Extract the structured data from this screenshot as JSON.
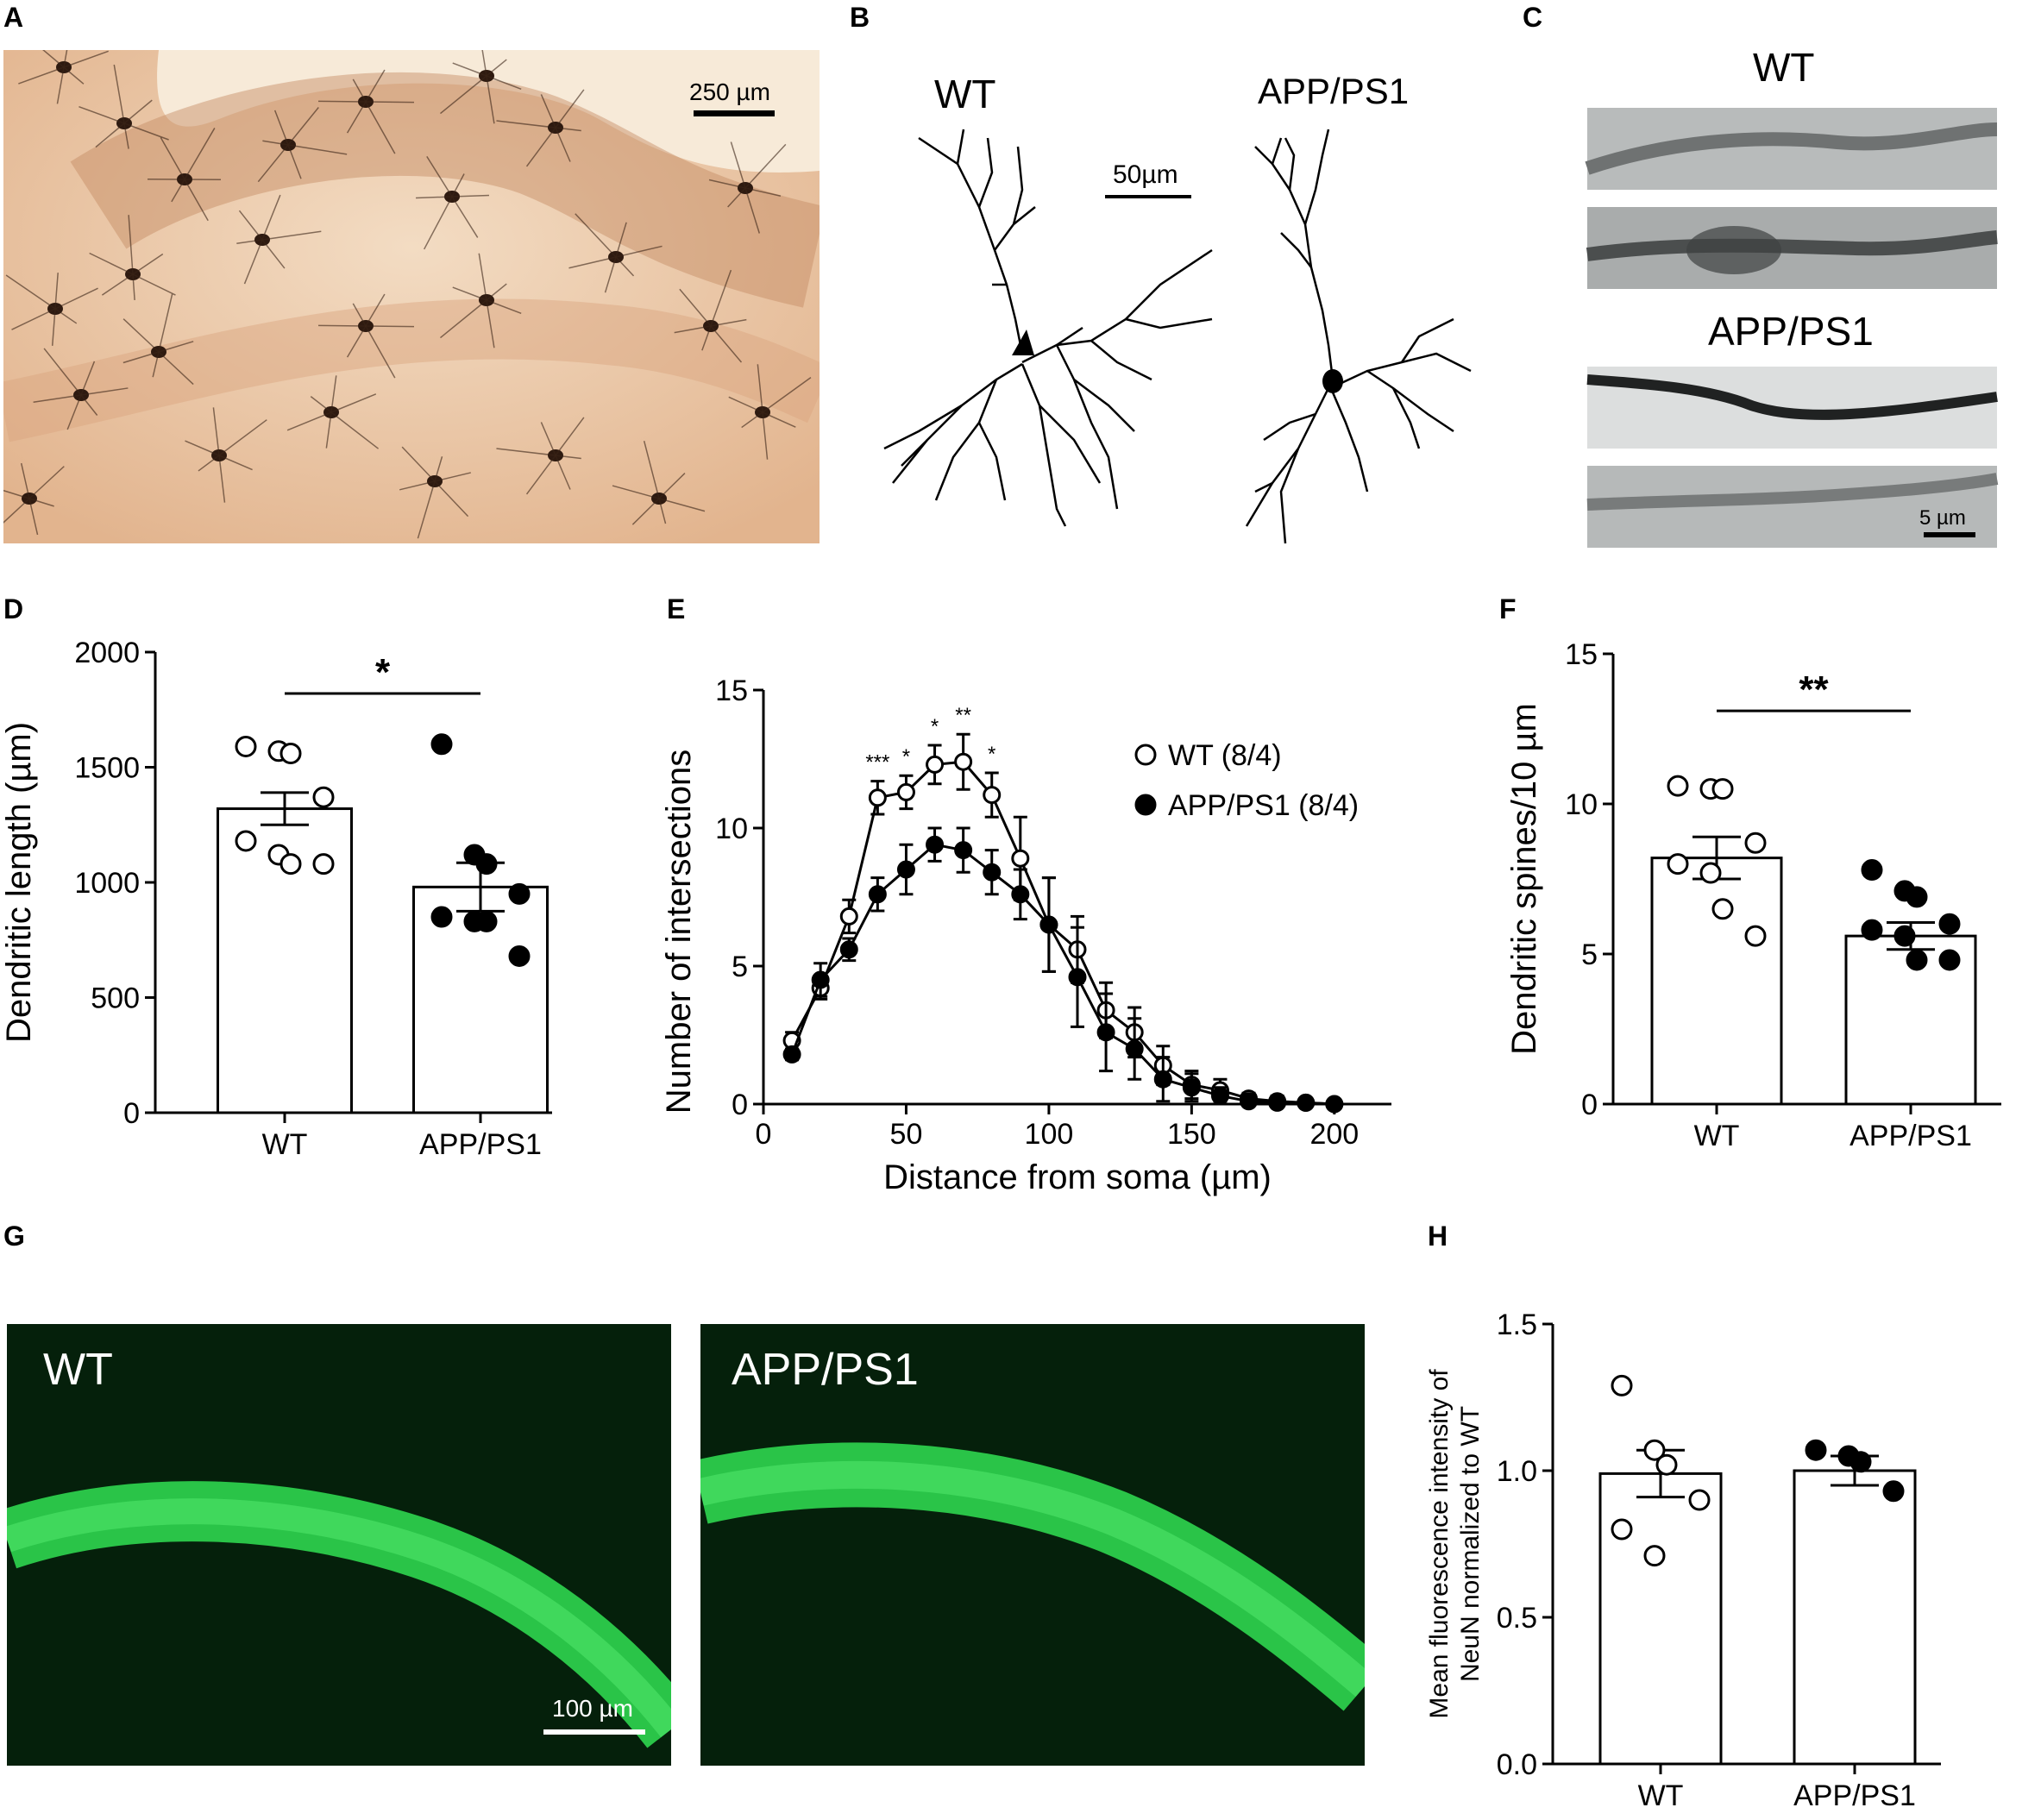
{
  "panels": {
    "A": {
      "label": "A",
      "scale": "250 µm"
    },
    "B": {
      "label": "B",
      "wt": "WT",
      "app": "APP/PS1",
      "scale": "50µm"
    },
    "C": {
      "label": "C",
      "wt": "WT",
      "app": "APP/PS1",
      "scale": "5 µm"
    },
    "D": {
      "label": "D"
    },
    "E": {
      "label": "E"
    },
    "F": {
      "label": "F"
    },
    "G": {
      "label": "G",
      "wt": "WT",
      "app": "APP/PS1",
      "scale": "100 µm"
    },
    "H": {
      "label": "H"
    }
  },
  "colors": {
    "photo_A_bg": "#eecfb2",
    "photo_A_fg": "#3a2417",
    "photo_C_bg": "#b9bcbc",
    "photo_G_bg": "#06210c",
    "photo_G_band": "#2fd64f"
  },
  "chart_data": [
    {
      "id": "D",
      "type": "bar",
      "categories": [
        "WT",
        "APP/PS1"
      ],
      "values": [
        1320,
        980
      ],
      "sem": [
        70,
        105
      ],
      "points": [
        [
          1590,
          1570,
          1560,
          1370,
          1180,
          1120,
          1080,
          1080
        ],
        [
          1600,
          1120,
          1080,
          950,
          850,
          830,
          830,
          680
        ]
      ],
      "point_fill": [
        "open",
        "filled"
      ],
      "ylabel": "Dendritic length (µm)",
      "ylim": [
        0,
        2000
      ],
      "yticks": [
        "0",
        "500",
        "1000",
        "1500",
        "2000"
      ],
      "significance": "*"
    },
    {
      "id": "E",
      "type": "line",
      "x": [
        10,
        20,
        30,
        40,
        50,
        60,
        70,
        80,
        90,
        100,
        110,
        120,
        130,
        140,
        150,
        160,
        170,
        180,
        190,
        200
      ],
      "series": [
        {
          "name": "WT (8/4)",
          "marker": "open",
          "values": [
            2.3,
            4.2,
            6.8,
            11.1,
            11.3,
            12.3,
            12.4,
            11.2,
            8.9,
            6.5,
            5.6,
            3.4,
            2.6,
            1.4,
            0.7,
            0.5,
            0.2,
            0.1,
            0.05,
            0.0
          ],
          "error": [
            0.3,
            0.4,
            0.6,
            0.6,
            0.6,
            0.7,
            1.0,
            0.8,
            1.5,
            1.7,
            1.2,
            1.0,
            0.9,
            0.7,
            0.5,
            0.4,
            0.2,
            0.2,
            0.15,
            0.1
          ]
        },
        {
          "name": "APP/PS1 (8/4)",
          "marker": "filled",
          "values": [
            1.8,
            4.5,
            5.6,
            7.6,
            8.5,
            9.4,
            9.2,
            8.4,
            7.6,
            6.5,
            4.6,
            2.6,
            2.0,
            0.9,
            0.6,
            0.3,
            0.1,
            0.05,
            0.05,
            0.0
          ],
          "error": [
            0.2,
            0.6,
            0.4,
            0.6,
            0.9,
            0.6,
            0.8,
            0.8,
            0.9,
            1.7,
            1.8,
            1.4,
            1.1,
            0.8,
            0.5,
            0.3,
            0.15,
            0.1,
            0.1,
            0.05
          ]
        }
      ],
      "annotations": [
        {
          "x": 40,
          "text": "***"
        },
        {
          "x": 50,
          "text": "*"
        },
        {
          "x": 60,
          "text": "*"
        },
        {
          "x": 70,
          "text": "**"
        },
        {
          "x": 80,
          "text": "*"
        }
      ],
      "xlabel": "Distance from soma (µm)",
      "ylabel": "Number of intersections",
      "xlim": [
        0,
        220
      ],
      "ylim": [
        0,
        15
      ],
      "xticks": [
        "0",
        "50",
        "100",
        "150",
        "200"
      ],
      "yticks": [
        "0",
        "5",
        "10",
        "15"
      ],
      "legend": "top-right"
    },
    {
      "id": "F",
      "type": "bar",
      "categories": [
        "WT",
        "APP/PS1"
      ],
      "values": [
        8.2,
        5.6
      ],
      "sem": [
        0.7,
        0.45
      ],
      "points": [
        [
          10.6,
          10.5,
          10.5,
          8.7,
          8.0,
          7.7,
          6.5,
          5.6
        ],
        [
          7.8,
          7.1,
          6.9,
          6.0,
          5.8,
          5.6,
          4.8,
          4.8
        ]
      ],
      "point_fill": [
        "open",
        "filled"
      ],
      "ylabel": "Dendritic spines/10 µm",
      "ylim": [
        0,
        15
      ],
      "yticks": [
        "0",
        "5",
        "10",
        "15"
      ],
      "significance": "**"
    },
    {
      "id": "H",
      "type": "bar",
      "categories": [
        "WT",
        "APP/PS1"
      ],
      "values": [
        0.99,
        1.0
      ],
      "sem": [
        0.08,
        0.05
      ],
      "points": [
        [
          1.29,
          1.07,
          1.02,
          0.9,
          0.8,
          0.71
        ],
        [
          1.07,
          1.05,
          1.03,
          0.93
        ]
      ],
      "point_fill": [
        "open",
        "filled"
      ],
      "ylabel_lines": [
        "Mean fluorescence intensity of",
        "NeuN normalized to WT"
      ],
      "ylim": [
        0,
        1.5
      ],
      "yticks": [
        "0.0",
        "0.5",
        "1.0",
        "1.5"
      ]
    }
  ]
}
